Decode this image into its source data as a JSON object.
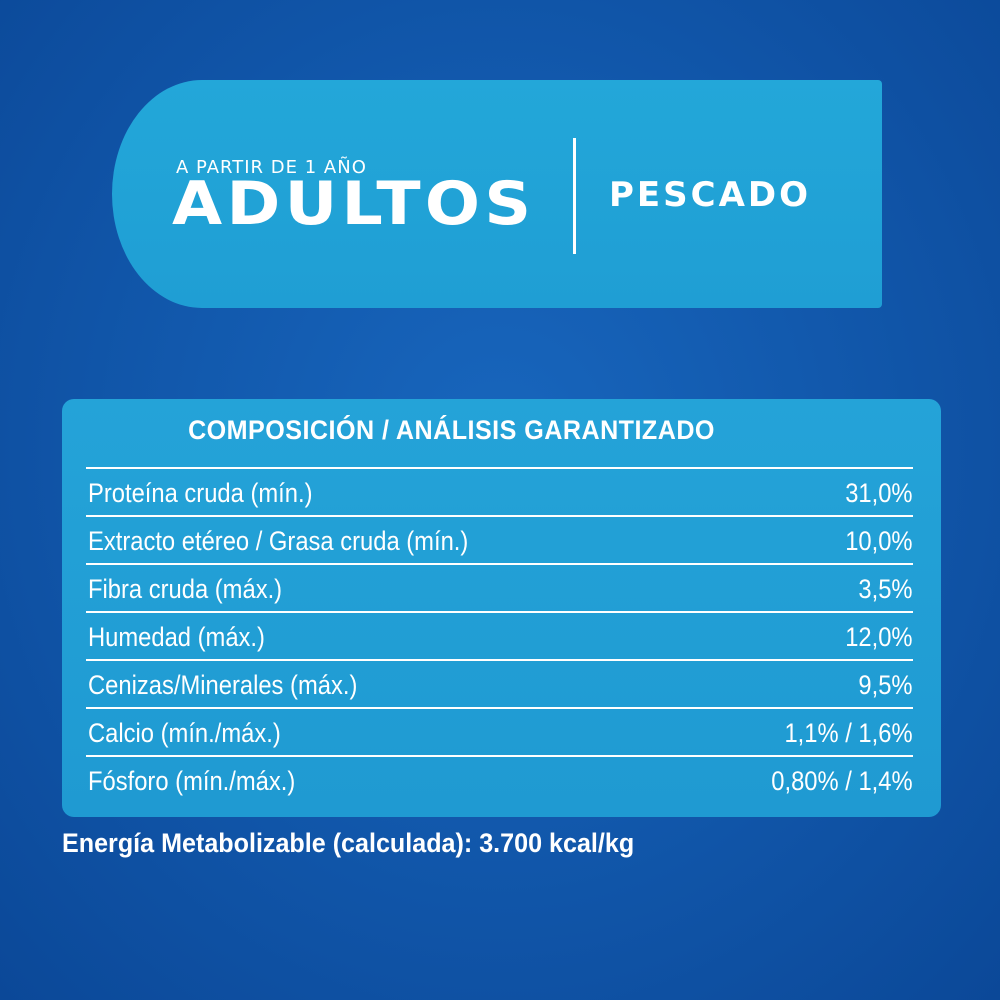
{
  "banner": {
    "subtitle": "A PARTIR DE 1 AÑO",
    "title": "ADULTOS",
    "flavor": "PESCADO"
  },
  "table": {
    "title": "COMPOSICIÓN / ANÁLISIS GARANTIZADO",
    "rows": [
      {
        "label": "Proteína cruda (mín.)",
        "value": "31,0%"
      },
      {
        "label": "Extracto etéreo / Grasa cruda (mín.)",
        "value": "10,0%"
      },
      {
        "label": "Fibra cruda (máx.)",
        "value": "3,5%"
      },
      {
        "label": "Humedad (máx.)",
        "value": "12,0%"
      },
      {
        "label": "Cenizas/Minerales (máx.)",
        "value": "9,5%"
      },
      {
        "label": "Calcio (mín./máx.)",
        "value": "1,1% / 1,6%"
      },
      {
        "label": "Fósforo (mín./máx.)",
        "value": "0,80% / 1,4%"
      }
    ]
  },
  "footer": {
    "energy": "Energía Metabolizable (calculada): 3.700 kcal/kg"
  },
  "colors": {
    "background": "#0f56a8",
    "panel": "#22a2d8",
    "text": "#ffffff"
  }
}
